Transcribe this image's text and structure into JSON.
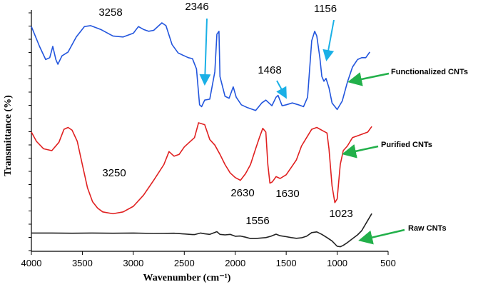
{
  "chart_data": {
    "type": "line",
    "xlabel": "Wavenumber (cm⁻¹)",
    "ylabel": "Transmittance (%)",
    "xlim": [
      4000,
      500
    ],
    "x_reversed": true,
    "xticks": [
      4000,
      3500,
      3000,
      2500,
      2000,
      1500,
      1000,
      500
    ],
    "grid": false,
    "series": [
      {
        "name": "Functionalized CNTs",
        "color": "#2255dd",
        "points": [
          [
            4000,
            0.93
          ],
          [
            3920,
            0.72
          ],
          [
            3860,
            0.58
          ],
          [
            3820,
            0.6
          ],
          [
            3790,
            0.72
          ],
          [
            3760,
            0.58
          ],
          [
            3740,
            0.53
          ],
          [
            3700,
            0.62
          ],
          [
            3640,
            0.66
          ],
          [
            3560,
            0.82
          ],
          [
            3480,
            0.93
          ],
          [
            3420,
            0.94
          ],
          [
            3320,
            0.9
          ],
          [
            3200,
            0.83
          ],
          [
            3100,
            0.82
          ],
          [
            3000,
            0.86
          ],
          [
            2950,
            0.93
          ],
          [
            2900,
            0.9
          ],
          [
            2850,
            0.88
          ],
          [
            2800,
            0.89
          ],
          [
            2720,
            0.97
          ],
          [
            2680,
            0.94
          ],
          [
            2620,
            0.74
          ],
          [
            2560,
            0.65
          ],
          [
            2500,
            0.62
          ],
          [
            2460,
            0.6
          ],
          [
            2420,
            0.59
          ],
          [
            2380,
            0.48
          ],
          [
            2350,
            0.1
          ],
          [
            2330,
            0.08
          ],
          [
            2300,
            0.15
          ],
          [
            2250,
            0.16
          ],
          [
            2200,
            0.45
          ],
          [
            2180,
            0.85
          ],
          [
            2160,
            0.88
          ],
          [
            2150,
            0.4
          ],
          [
            2100,
            0.19
          ],
          [
            2060,
            0.17
          ],
          [
            2020,
            0.29
          ],
          [
            1990,
            0.18
          ],
          [
            1940,
            0.1
          ],
          [
            1880,
            0.07
          ],
          [
            1800,
            0.04
          ],
          [
            1740,
            0.12
          ],
          [
            1700,
            0.15
          ],
          [
            1640,
            0.09
          ],
          [
            1600,
            0.18
          ],
          [
            1580,
            0.2
          ],
          [
            1540,
            0.09
          ],
          [
            1500,
            0.1
          ],
          [
            1440,
            0.12
          ],
          [
            1380,
            0.1
          ],
          [
            1330,
            0.08
          ],
          [
            1290,
            0.18
          ],
          [
            1250,
            0.78
          ],
          [
            1220,
            0.88
          ],
          [
            1200,
            0.83
          ],
          [
            1170,
            0.6
          ],
          [
            1150,
            0.4
          ],
          [
            1130,
            0.35
          ],
          [
            1110,
            0.38
          ],
          [
            1080,
            0.28
          ],
          [
            1050,
            0.12
          ],
          [
            1000,
            0.05
          ],
          [
            950,
            0.14
          ],
          [
            900,
            0.34
          ],
          [
            850,
            0.5
          ],
          [
            800,
            0.58
          ],
          [
            760,
            0.6
          ],
          [
            720,
            0.6
          ],
          [
            680,
            0.66
          ]
        ]
      },
      {
        "name": "Purified CNTs",
        "color": "#e02020",
        "points": [
          [
            4000,
            0.9
          ],
          [
            3950,
            0.8
          ],
          [
            3880,
            0.72
          ],
          [
            3800,
            0.7
          ],
          [
            3730,
            0.79
          ],
          [
            3680,
            0.93
          ],
          [
            3640,
            0.95
          ],
          [
            3600,
            0.92
          ],
          [
            3550,
            0.8
          ],
          [
            3500,
            0.55
          ],
          [
            3450,
            0.3
          ],
          [
            3400,
            0.15
          ],
          [
            3350,
            0.08
          ],
          [
            3300,
            0.04
          ],
          [
            3200,
            0.02
          ],
          [
            3100,
            0.04
          ],
          [
            3000,
            0.1
          ],
          [
            2900,
            0.22
          ],
          [
            2800,
            0.38
          ],
          [
            2700,
            0.55
          ],
          [
            2650,
            0.69
          ],
          [
            2600,
            0.64
          ],
          [
            2550,
            0.66
          ],
          [
            2500,
            0.74
          ],
          [
            2450,
            0.79
          ],
          [
            2400,
            0.84
          ],
          [
            2360,
            1.0
          ],
          [
            2300,
            0.98
          ],
          [
            2250,
            0.82
          ],
          [
            2200,
            0.76
          ],
          [
            2150,
            0.66
          ],
          [
            2100,
            0.55
          ],
          [
            2050,
            0.46
          ],
          [
            2000,
            0.41
          ],
          [
            1950,
            0.38
          ],
          [
            1900,
            0.45
          ],
          [
            1850,
            0.55
          ],
          [
            1800,
            0.72
          ],
          [
            1760,
            0.85
          ],
          [
            1730,
            0.94
          ],
          [
            1700,
            0.9
          ],
          [
            1680,
            0.55
          ],
          [
            1660,
            0.35
          ],
          [
            1640,
            0.36
          ],
          [
            1625,
            0.38
          ],
          [
            1600,
            0.42
          ],
          [
            1560,
            0.4
          ],
          [
            1500,
            0.44
          ],
          [
            1450,
            0.52
          ],
          [
            1400,
            0.6
          ],
          [
            1350,
            0.75
          ],
          [
            1300,
            0.84
          ],
          [
            1250,
            0.93
          ],
          [
            1200,
            0.95
          ],
          [
            1150,
            0.92
          ],
          [
            1100,
            0.89
          ],
          [
            1080,
            0.72
          ],
          [
            1050,
            0.32
          ],
          [
            1023,
            0.14
          ],
          [
            1000,
            0.18
          ],
          [
            970,
            0.55
          ],
          [
            940,
            0.7
          ],
          [
            900,
            0.75
          ],
          [
            850,
            0.84
          ],
          [
            800,
            0.86
          ],
          [
            750,
            0.88
          ],
          [
            700,
            0.9
          ],
          [
            660,
            0.96
          ]
        ]
      },
      {
        "name": "Raw CNTs",
        "color": "#222222",
        "points": [
          [
            4000,
            0.8
          ],
          [
            3800,
            0.8
          ],
          [
            3600,
            0.79
          ],
          [
            3400,
            0.8
          ],
          [
            3200,
            0.79
          ],
          [
            3000,
            0.8
          ],
          [
            2800,
            0.78
          ],
          [
            2600,
            0.79
          ],
          [
            2500,
            0.76
          ],
          [
            2420,
            0.73
          ],
          [
            2400,
            0.73
          ],
          [
            2340,
            0.8
          ],
          [
            2300,
            0.77
          ],
          [
            2250,
            0.74
          ],
          [
            2180,
            0.86
          ],
          [
            2150,
            0.74
          ],
          [
            2100,
            0.72
          ],
          [
            2050,
            0.74
          ],
          [
            2000,
            0.66
          ],
          [
            1950,
            0.67
          ],
          [
            1900,
            0.62
          ],
          [
            1850,
            0.56
          ],
          [
            1800,
            0.56
          ],
          [
            1750,
            0.58
          ],
          [
            1700,
            0.6
          ],
          [
            1650,
            0.66
          ],
          [
            1600,
            0.75
          ],
          [
            1560,
            0.68
          ],
          [
            1500,
            0.64
          ],
          [
            1450,
            0.6
          ],
          [
            1400,
            0.57
          ],
          [
            1350,
            0.59
          ],
          [
            1300,
            0.66
          ],
          [
            1250,
            0.82
          ],
          [
            1200,
            0.85
          ],
          [
            1150,
            0.74
          ],
          [
            1100,
            0.6
          ],
          [
            1050,
            0.45
          ],
          [
            1000,
            0.22
          ],
          [
            970,
            0.2
          ],
          [
            940,
            0.26
          ],
          [
            900,
            0.38
          ],
          [
            850,
            0.55
          ],
          [
            800,
            0.72
          ],
          [
            760,
            0.9
          ],
          [
            700,
            1.35
          ],
          [
            660,
            1.65
          ]
        ]
      }
    ],
    "annotations": [
      {
        "text": "3258",
        "x": 3258,
        "series": 0
      },
      {
        "text": "2346",
        "x": 2346,
        "series": 0,
        "arrow": true
      },
      {
        "text": "1468",
        "x": 1468,
        "series": 0,
        "arrow": true
      },
      {
        "text": "1156",
        "x": 1156,
        "series": 0,
        "arrow": true
      },
      {
        "text": "3250",
        "x": 3250,
        "series": 1
      },
      {
        "text": "2630",
        "x": 2630,
        "series": 1
      },
      {
        "text": "1630",
        "x": 1630,
        "series": 1
      },
      {
        "text": "1556",
        "x": 1556,
        "series": 2
      },
      {
        "text": "1023",
        "x": 1023,
        "series": 2
      }
    ]
  }
}
